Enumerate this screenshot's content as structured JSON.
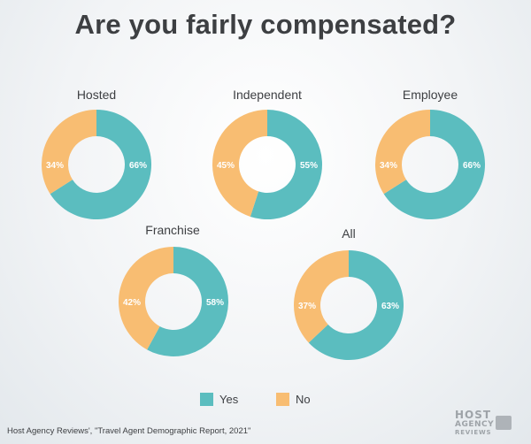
{
  "title": "Are you fairly compensated?",
  "colors": {
    "yes": "#5bbdbf",
    "no": "#f8bd72"
  },
  "legend": {
    "yes": "Yes",
    "no": "No"
  },
  "source": "Host Agency Reviews', \"Travel Agent Demographic Report, 2021\"",
  "logo": {
    "line1": "HOST",
    "line2": "AGENCY",
    "line3": "REVIEWS"
  },
  "chart_data": [
    {
      "type": "pie",
      "title": "Hosted",
      "categories": [
        "Yes",
        "No"
      ],
      "values": [
        66,
        34
      ],
      "labels": [
        "66%",
        "34%"
      ]
    },
    {
      "type": "pie",
      "title": "Independent",
      "categories": [
        "Yes",
        "No"
      ],
      "values": [
        55,
        45
      ],
      "labels": [
        "55%",
        "45%"
      ]
    },
    {
      "type": "pie",
      "title": "Employee",
      "categories": [
        "Yes",
        "No"
      ],
      "values": [
        66,
        34
      ],
      "labels": [
        "66%",
        "34%"
      ]
    },
    {
      "type": "pie",
      "title": "Franchise",
      "categories": [
        "Yes",
        "No"
      ],
      "values": [
        58,
        42
      ],
      "labels": [
        "58%",
        "42%"
      ]
    },
    {
      "type": "pie",
      "title": "All",
      "categories": [
        "Yes",
        "No"
      ],
      "values": [
        63,
        37
      ],
      "labels": [
        "63%",
        "37%"
      ]
    }
  ]
}
